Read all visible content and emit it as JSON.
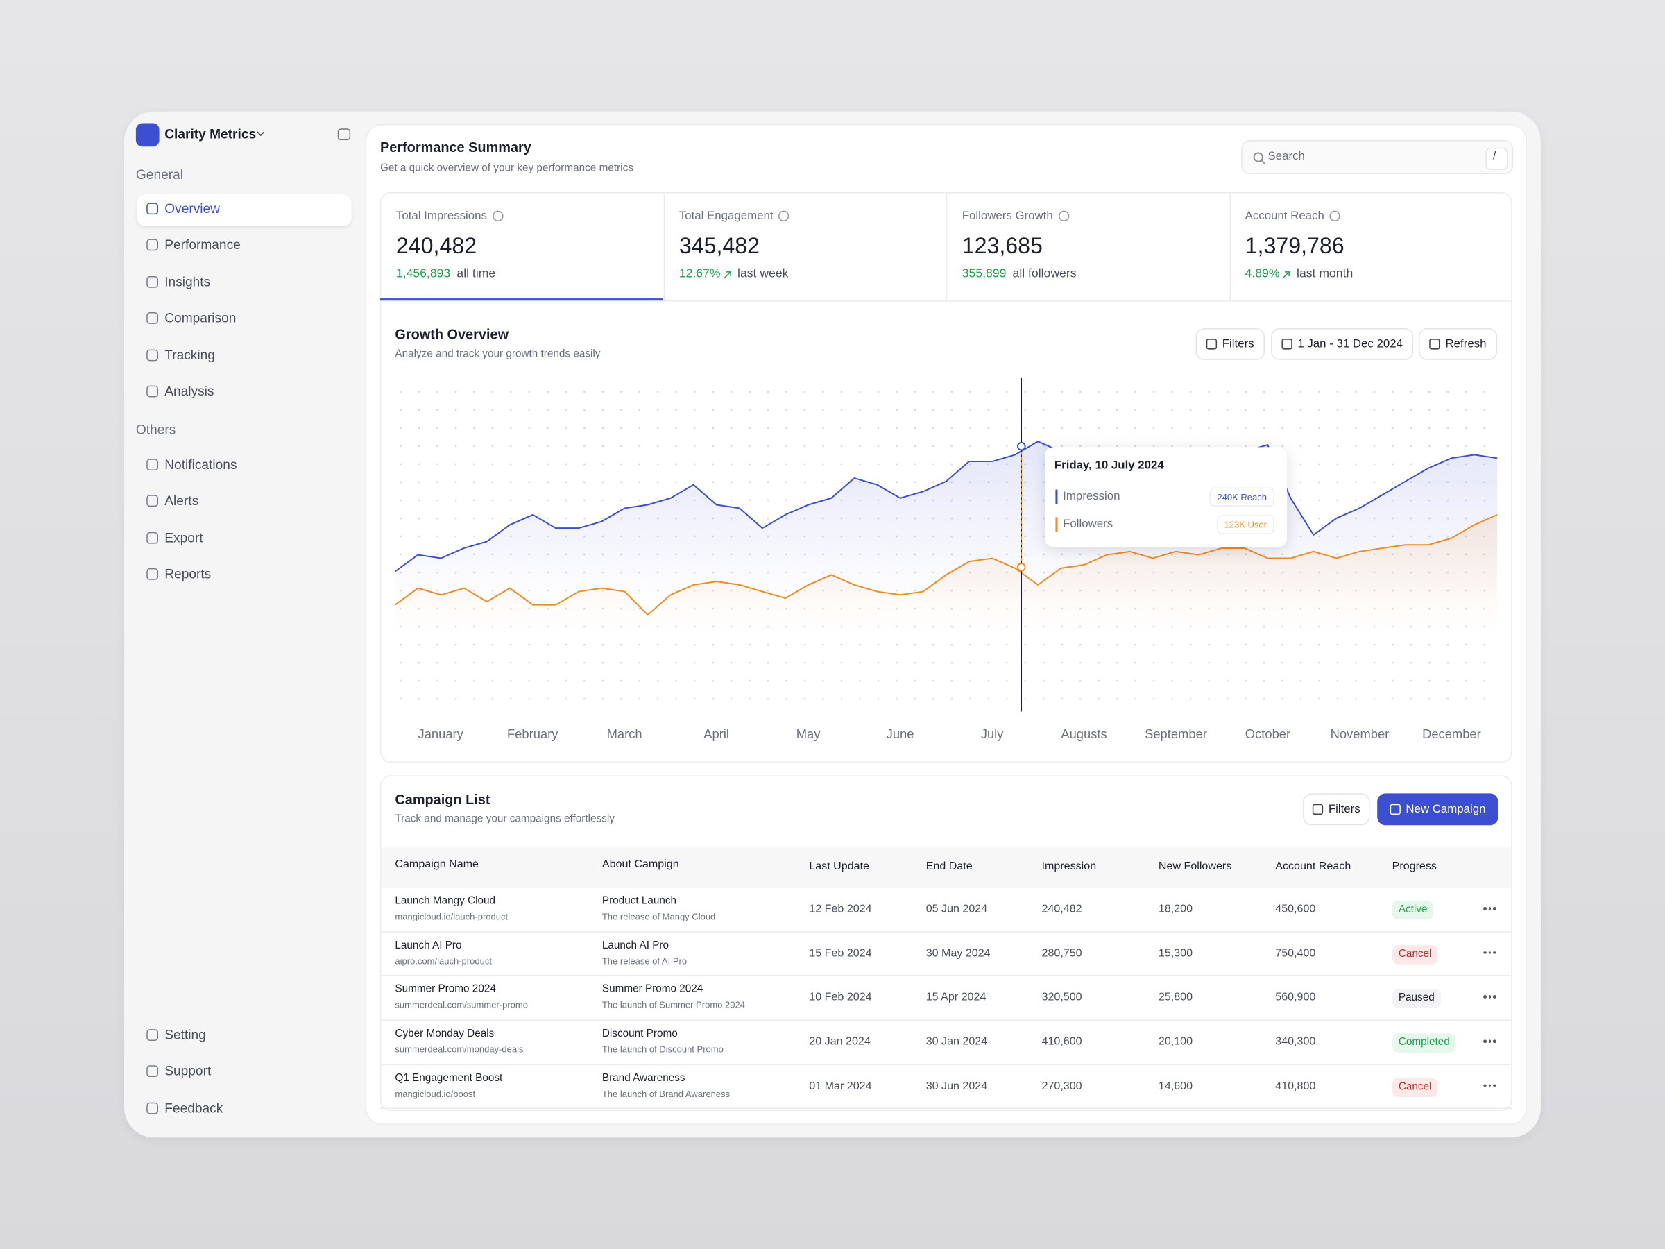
{
  "sidebar": {
    "brand": "Clarity Metrics",
    "sections": [
      {
        "title": "General",
        "items": [
          "Overview",
          "Performance",
          "Insights",
          "Comparison",
          "Tracking",
          "Analysis"
        ]
      },
      {
        "title": "Others",
        "items": [
          "Notifications",
          "Alerts",
          "Export",
          "Reports"
        ]
      }
    ],
    "footer_items": [
      "Setting",
      "Support",
      "Feedback"
    ]
  },
  "header": {
    "title": "Performance Summary",
    "subtitle": "Get a quick overview of your key performance metrics",
    "search_placeholder": "Search",
    "search_shortcut": "/"
  },
  "stats": [
    {
      "label": "Total Impressions",
      "value": "240,482",
      "sub_value": "1,456,893",
      "sub_label": "all time",
      "trend_up": false
    },
    {
      "label": "Total Engagement",
      "value": "345,482",
      "sub_value": "12.67%",
      "sub_label": "last week",
      "trend_up": true
    },
    {
      "label": "Followers Growth",
      "value": "123,685",
      "sub_value": "355,899",
      "sub_label": "all followers",
      "trend_up": false
    },
    {
      "label": "Account Reach",
      "value": "1,379,786",
      "sub_value": "4.89%",
      "sub_label": "last month",
      "trend_up": true
    }
  ],
  "growth_overview": {
    "title": "Growth Overview",
    "subtitle": "Analyze and track your growth trends easily",
    "buttons": [
      "Filters",
      "1 Jan - 31 Dec 2024",
      "Refresh"
    ],
    "tooltip": {
      "date": "Friday, 10 July 2024",
      "values": [
        "240K Reach",
        "123K User"
      ]
    }
  },
  "chart_data": {
    "type": "line",
    "x_labels": [
      "January",
      "February",
      "March",
      "April",
      "May",
      "June",
      "July",
      "Augusts",
      "September",
      "October",
      "November",
      "December"
    ],
    "ylim": [
      0,
      100
    ],
    "grid": true,
    "series": [
      {
        "name": "Impression",
        "color": "#3d4fd1",
        "values": [
          42,
          47,
          46,
          49,
          51,
          56,
          59,
          55,
          55,
          57,
          61,
          62,
          64,
          68,
          62,
          61,
          55,
          59,
          62,
          64,
          70,
          68,
          64,
          66,
          69,
          75,
          75,
          77,
          81,
          78,
          77,
          76,
          78,
          76,
          77,
          75,
          76,
          78,
          80,
          64,
          53,
          58,
          61,
          65,
          69,
          73,
          76,
          77,
          76
        ]
      },
      {
        "name": "Followers",
        "color": "#f08a24",
        "values": [
          32,
          37,
          35,
          37,
          33,
          37,
          32,
          32,
          36,
          37,
          36,
          29,
          35,
          38,
          39,
          38,
          36,
          34,
          38,
          41,
          38,
          36,
          35,
          36,
          41,
          45,
          46,
          43,
          38,
          43,
          44,
          47,
          48,
          46,
          48,
          47,
          49,
          49,
          46,
          46,
          48,
          46,
          48,
          49,
          50,
          50,
          52,
          56,
          59
        ]
      }
    ]
  },
  "campaigns": {
    "title": "Campaign List",
    "subtitle": "Track and manage your campaigns effortlessly",
    "buttons": [
      "Filters",
      "New Campaign"
    ],
    "columns": [
      "Campaign Name",
      "About Campign",
      "Last Update",
      "End Date",
      "Impression",
      "New Followers",
      "Account Reach",
      "Progress"
    ],
    "rows": [
      {
        "name": "Launch Mangy Cloud",
        "url": "mangicloud.io/lauch-product",
        "about": "Product Launch",
        "about_detail": "The release of Mangy Cloud",
        "last_update": "12 Feb 2024",
        "end_date": "05 Jun 2024",
        "impression": "240,482",
        "new_followers": "18,200",
        "account_reach": "450,600",
        "progress": {
          "label": "Active",
          "color": "green"
        }
      },
      {
        "name": "Launch AI Pro",
        "url": "aipro.com/lauch-product",
        "about": "Launch AI Pro",
        "about_detail": "The release of AI Pro",
        "last_update": "15 Feb 2024",
        "end_date": "30 May 2024",
        "impression": "280,750",
        "new_followers": "15,300",
        "account_reach": "750,400",
        "progress": {
          "label": "Cancel",
          "color": "red"
        }
      },
      {
        "name": "Summer Promo 2024",
        "url": "summerdeal.com/summer-promo",
        "about": "Summer Promo 2024",
        "about_detail": "The launch of Summer Promo 2024",
        "last_update": "10 Feb 2024",
        "end_date": "15 Apr 2024",
        "impression": "320,500",
        "new_followers": "25,800",
        "account_reach": "560,900",
        "progress": {
          "label": "Paused",
          "color": "gray"
        }
      },
      {
        "name": "Cyber Monday Deals",
        "url": "summerdeal.com/monday-deals",
        "about": "Discount Promo",
        "about_detail": "The launch of Discount Promo",
        "last_update": "20 Jan 2024",
        "end_date": "30 Jan 2024",
        "impression": "410,600",
        "new_followers": "20,100",
        "account_reach": "340,300",
        "progress": {
          "label": "Completed",
          "color": "green"
        }
      },
      {
        "name": "Q1 Engagement Boost",
        "url": "mangicloud.io/boost",
        "about": "Brand Awareness",
        "about_detail": "The launch of Brand Awareness",
        "last_update": "01 Mar 2024",
        "end_date": "30 Jun 2024",
        "impression": "270,300",
        "new_followers": "14,600",
        "account_reach": "410,800",
        "progress": {
          "label": "Cancel",
          "color": "red"
        }
      }
    ]
  }
}
